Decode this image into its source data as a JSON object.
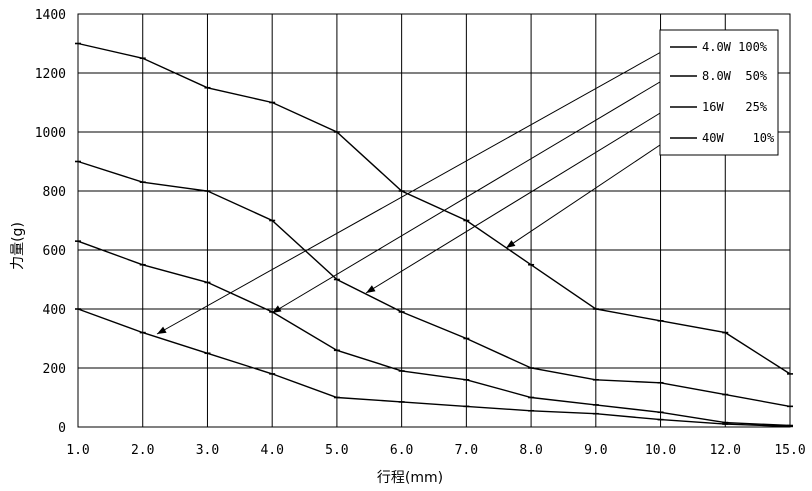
{
  "chart_data": {
    "type": "line",
    "title": "",
    "xlabel": "行程(mm)",
    "ylabel": "力量(g)",
    "categories": [
      "1.0",
      "2.0",
      "3.0",
      "4.0",
      "5.0",
      "6.0",
      "7.0",
      "8.0",
      "9.0",
      "10.0",
      "12.0",
      "15.0"
    ],
    "ylim": [
      0,
      1400
    ],
    "yticks": [
      0,
      200,
      400,
      600,
      800,
      1000,
      1200,
      1400
    ],
    "grid": true,
    "legend_position": "top-right",
    "series": [
      {
        "name": "4.0W 100%",
        "values": [
          1300,
          1250,
          1150,
          1100,
          1000,
          800,
          700,
          550,
          400,
          360,
          320,
          180
        ]
      },
      {
        "name": "8.0W  50%",
        "values": [
          900,
          830,
          800,
          700,
          500,
          390,
          300,
          200,
          160,
          150,
          110,
          70
        ]
      },
      {
        "name": "16W   25%",
        "values": [
          630,
          550,
          490,
          390,
          260,
          190,
          160,
          100,
          75,
          50,
          15,
          5
        ]
      },
      {
        "name": "40W    10%",
        "values": [
          400,
          320,
          250,
          180,
          100,
          85,
          70,
          55,
          45,
          25,
          10,
          2
        ]
      }
    ]
  }
}
